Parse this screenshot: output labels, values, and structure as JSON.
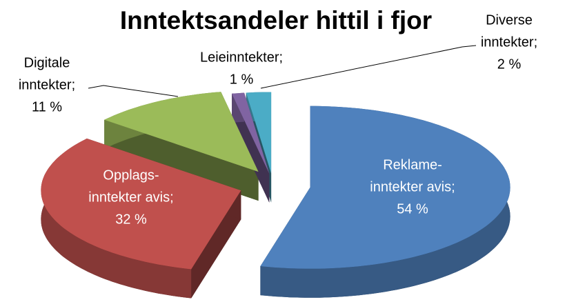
{
  "chart_data": {
    "type": "pie3d",
    "title": "Inntektsandeler hittil i fjor",
    "values": [
      54,
      32,
      11,
      1,
      2
    ],
    "value_labels": [
      [
        "Reklame-",
        "inntekter avis;",
        "54 %"
      ],
      [
        "Opplags-",
        "inntekter avis;",
        "32 %"
      ],
      [
        "Digitale",
        "inntekter;",
        "11 %"
      ],
      [
        "Leieinntekter;",
        "1 %"
      ],
      [
        "Diverse",
        "inntekter;",
        "2 %"
      ]
    ],
    "colors": [
      "#4f81bd",
      "#c0504d",
      "#9bbb59",
      "#8064a2",
      "#4bacc6"
    ]
  }
}
